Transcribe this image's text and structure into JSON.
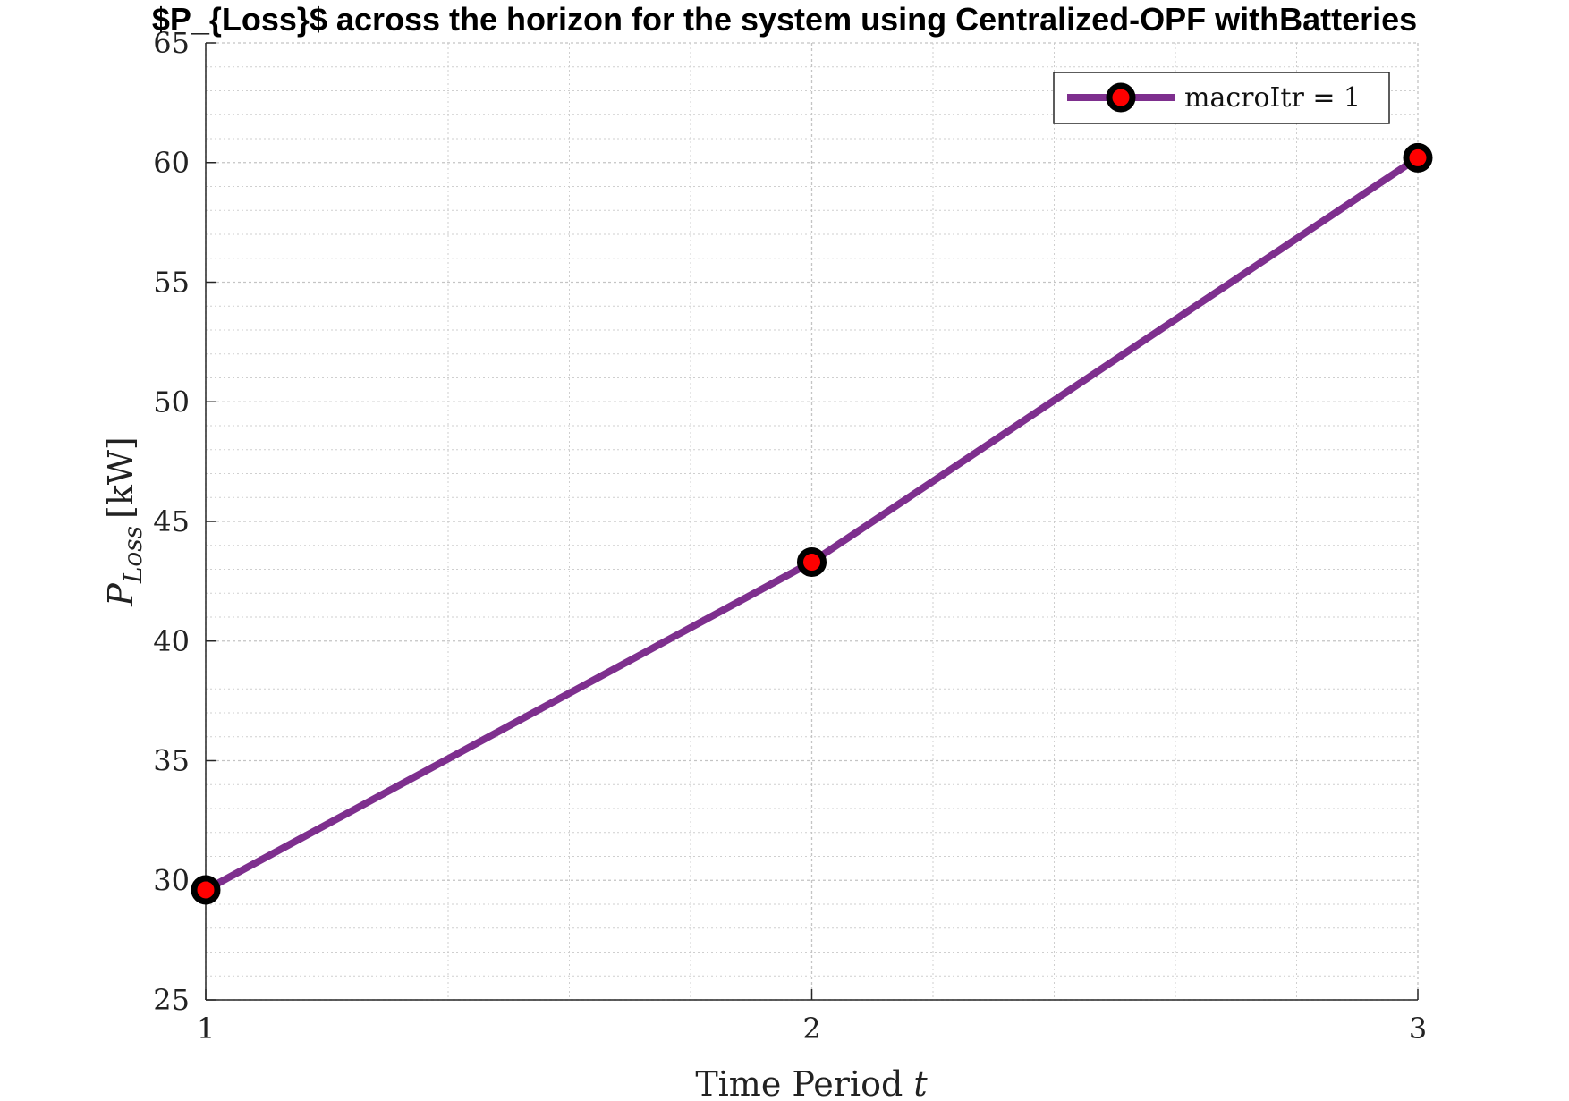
{
  "chart_data": {
    "type": "line",
    "title": "$P_{Loss}$ across the horizon for the system using Centralized-OPF withBatteries",
    "xlabel": "Time Period t",
    "ylabel": "P_Loss [kW]",
    "ylabel_main": "P",
    "ylabel_sub": "Loss",
    "ylabel_unit": "[kW]",
    "xlabel_main": "Time Period",
    "xlabel_var": "t",
    "xlim": [
      1,
      3
    ],
    "ylim": [
      25,
      65
    ],
    "xticks": [
      1,
      2,
      3
    ],
    "yticks": [
      25,
      30,
      35,
      40,
      45,
      50,
      55,
      60,
      65
    ],
    "grid": true,
    "minor_grid": true,
    "legend_position": "top-right",
    "series": [
      {
        "name": "macroItr = 1",
        "x": [
          1,
          2,
          3
        ],
        "y": [
          29.6,
          43.3,
          60.2
        ],
        "line_color": "#7e2f8e",
        "marker_edge_color": "#000000",
        "marker_face_color": "#ff0000"
      }
    ]
  }
}
